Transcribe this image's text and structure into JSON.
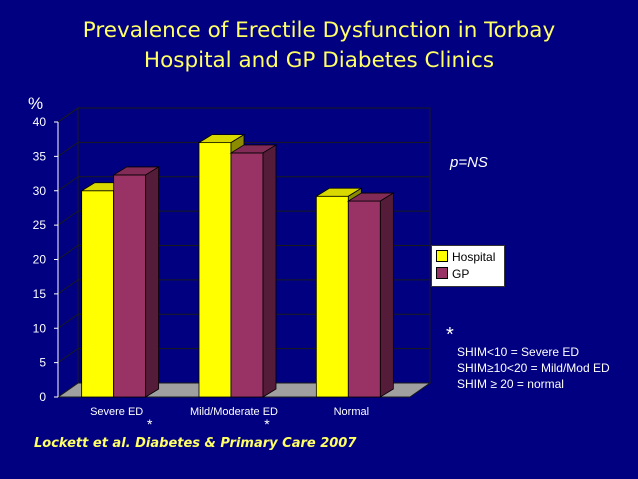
{
  "slide": {
    "title_line1": "Prevalence of Erectile Dysfunction in Torbay",
    "title_line2": "Hospital and GP Diabetes Clinics",
    "citation": "Lockett et al. Diabetes & Primary Care 2007",
    "significance": "p=NS",
    "asterisk": "*",
    "footnote_lines": [
      "SHIM<10 = Severe ED",
      "SHIM≥10<20 = Mild/Mod ED",
      "SHIM ≥ 20 = normal"
    ]
  },
  "colors": {
    "background": "#000080",
    "hospital": "#FFFF00",
    "gp": "#993366",
    "title": "#FFFF66"
  },
  "chart_data": {
    "type": "bar",
    "ylabel": "%",
    "ylim": [
      0,
      40
    ],
    "yticks": [
      0,
      5,
      10,
      15,
      20,
      25,
      30,
      35,
      40
    ],
    "categories": [
      "Severe ED",
      "Mild/Moderate ED",
      "Normal"
    ],
    "category_markers": [
      "*",
      "*",
      ""
    ],
    "series": [
      {
        "name": "Hospital",
        "values": [
          30,
          37,
          29.2
        ]
      },
      {
        "name": "GP",
        "values": [
          32.3,
          35.5,
          28.5
        ]
      }
    ],
    "legend_position": "right",
    "grid": true
  }
}
